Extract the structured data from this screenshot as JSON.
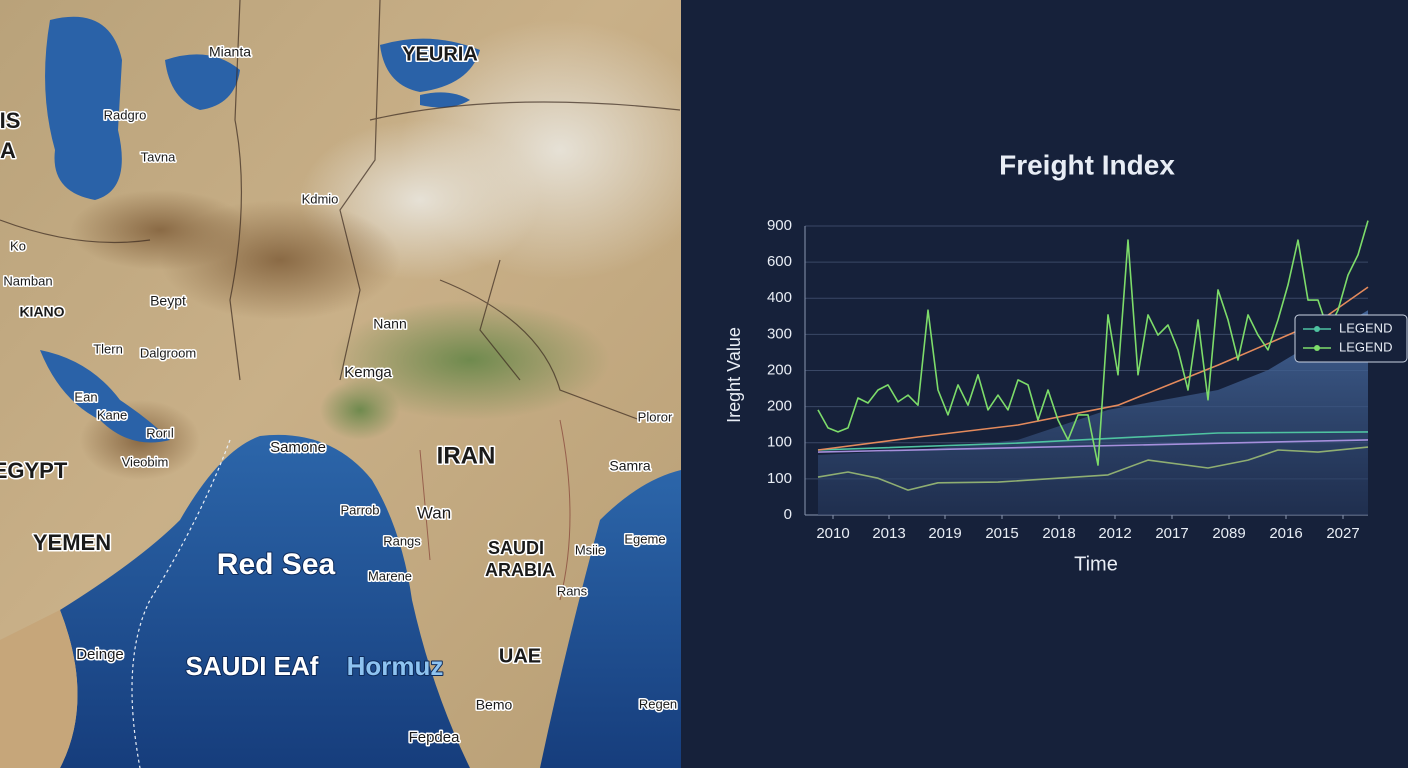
{
  "map": {
    "labels": [
      "Mianta",
      "YEURIA",
      "IS",
      "A",
      "Radgro",
      "Tavna",
      "Kdmio",
      "Ko",
      "Namban",
      "KIANO",
      "Beypt",
      "Tlern",
      "Dalgroom",
      "Nann",
      "Kemga",
      "Ean",
      "Kane",
      "Rorıl",
      "Vieobim",
      "EGYPT",
      "Samone",
      "IRAN",
      "Samra",
      "Parrob",
      "Wan",
      "Rangs",
      "Marene",
      "YEMEN",
      "Red Sea",
      "SAUDI",
      "ARABIA",
      "Msiie",
      "Egeme",
      "Rans",
      "Deinge",
      "SAUDI EAf",
      "Hormuz",
      "UAE",
      "Bemo",
      "Fepdea",
      "Regen",
      "Ploror"
    ]
  },
  "chart_data": {
    "type": "line",
    "title": "Freight Index",
    "y_label": "Ireght Value",
    "x_label": "Time",
    "xlim": [
      -1.3,
      55
    ],
    "ylim": [
      0,
      800
    ],
    "xticks": [
      {
        "value": 1.5,
        "label": "2010"
      },
      {
        "value": 7.1,
        "label": "2013"
      },
      {
        "value": 12.7,
        "label": "2019"
      },
      {
        "value": 18.4,
        "label": "2015"
      },
      {
        "value": 24.1,
        "label": "2018"
      },
      {
        "value": 29.7,
        "label": "2012"
      },
      {
        "value": 35.4,
        "label": "2017"
      },
      {
        "value": 41.1,
        "label": "2089"
      },
      {
        "value": 46.8,
        "label": "2016"
      },
      {
        "value": 52.5,
        "label": "2027"
      }
    ],
    "yticks": [
      0,
      100,
      {
        "value": 200,
        "label": "100"
      },
      {
        "value": 300,
        "label": "200"
      },
      {
        "value": 400,
        "label": "200"
      },
      {
        "value": 500,
        "label": "300"
      },
      {
        "value": 600,
        "label": "400"
      },
      {
        "value": 700,
        "label": "600"
      },
      {
        "value": 800,
        "label": "900"
      }
    ],
    "grid": true,
    "series": [
      {
        "color": "#3d5f93",
        "fill": true,
        "x": [
          0,
          10,
          20,
          29,
          40,
          45,
          55
        ],
        "values": [
          166,
          180,
          208,
          291,
          346,
          401,
          567
        ]
      },
      {
        "color": "#8fae72",
        "x": [
          0,
          3,
          6,
          9,
          12,
          18,
          24,
          29,
          33,
          39,
          43,
          46,
          50,
          55
        ],
        "values": [
          105,
          119,
          102,
          69,
          89,
          91,
          102,
          111,
          152,
          130,
          152,
          180,
          174,
          188
        ]
      },
      {
        "color": "#a58fdc",
        "x": [
          0,
          55
        ],
        "values": [
          174,
          208
        ]
      },
      {
        "name": "LEGEND",
        "color": "#4fc3a1",
        "x": [
          0,
          20,
          40,
          55
        ],
        "values": [
          180,
          199,
          227,
          230
        ]
      },
      {
        "color": "#e48a5c",
        "x": [
          0,
          10,
          20,
          30,
          40,
          50,
          55
        ],
        "values": [
          180,
          216,
          249,
          304,
          415,
          534,
          631
        ]
      },
      {
        "name": "LEGEND",
        "color": "#7ddc6a",
        "x": [
          0,
          1,
          2,
          3,
          4,
          5,
          6,
          7,
          8,
          9,
          10,
          11,
          12,
          13,
          14,
          15,
          16,
          17,
          18,
          19,
          20,
          21,
          22,
          23,
          24,
          25,
          26,
          27,
          28,
          29,
          30,
          31,
          32,
          33,
          34,
          35,
          36,
          37,
          38,
          39,
          40,
          41,
          42,
          43,
          44,
          45,
          46,
          47,
          48,
          49,
          50,
          51,
          52,
          53,
          54,
          55
        ],
        "values": [
          291,
          241,
          230,
          241,
          324,
          310,
          346,
          360,
          313,
          332,
          304,
          567,
          346,
          277,
          360,
          304,
          388,
          291,
          332,
          291,
          374,
          360,
          263,
          346,
          263,
          208,
          277,
          277,
          138,
          554,
          388,
          761,
          388,
          554,
          498,
          526,
          457,
          346,
          540,
          319,
          623,
          540,
          429,
          554,
          498,
          457,
          540,
          637,
          761,
          595,
          595,
          512,
          567,
          664,
          720,
          815
        ]
      }
    ],
    "legend": "right"
  }
}
